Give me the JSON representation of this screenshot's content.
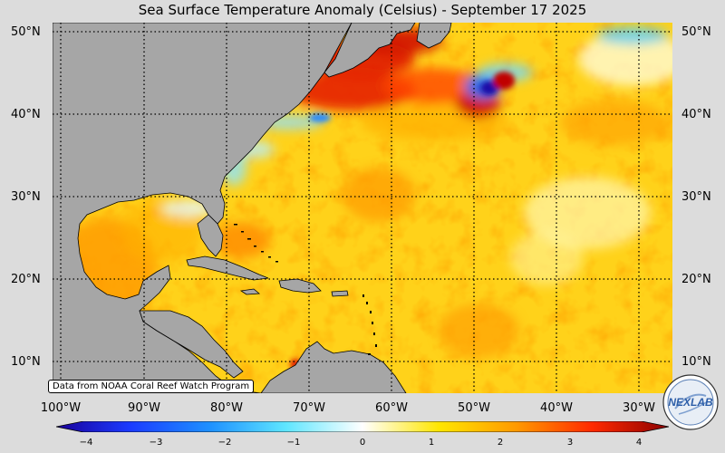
{
  "title": "Sea Surface Temperature Anomaly (Celsius) - September 17 2025",
  "map": {
    "lat_labels": [
      "50°N",
      "40°N",
      "30°N",
      "20°N",
      "10°N"
    ],
    "lon_labels": [
      "100°W",
      "90°W",
      "80°W",
      "70°W",
      "60°W",
      "50°W",
      "40°W",
      "30°W"
    ],
    "colors": {
      "land": "#a6a6a6",
      "warm": "#ffd21a",
      "hot": "#e01a00",
      "cold": "#1b6dff",
      "neutral": "#ffffff"
    }
  },
  "credit": "Data from NOAA Coral Reef Watch Program",
  "logo_text": "NEXLAB",
  "colorbar": {
    "ticks": [
      "−4",
      "−3",
      "−2",
      "−1",
      "0",
      "1",
      "2",
      "3",
      "4"
    ],
    "range": [
      -4,
      4
    ]
  }
}
